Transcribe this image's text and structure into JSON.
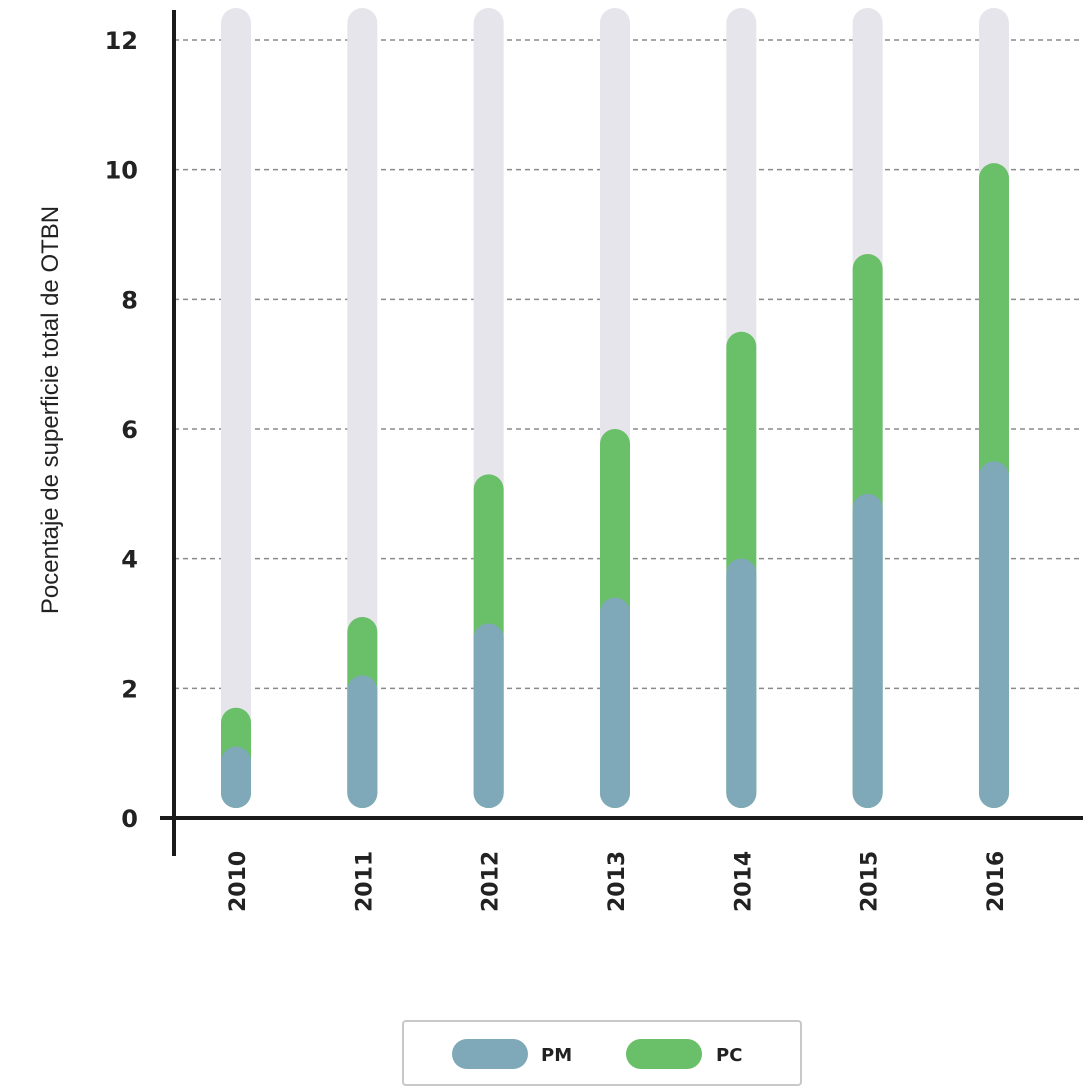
{
  "chart_data": {
    "type": "bar",
    "stacked": true,
    "categories": [
      "2010",
      "2011",
      "2012",
      "2013",
      "2014",
      "2015",
      "2016"
    ],
    "series": [
      {
        "name": "PM",
        "values": [
          1.1,
          2.2,
          3.0,
          3.4,
          4.0,
          5.0,
          5.5
        ]
      },
      {
        "name": "PC",
        "values": [
          0.6,
          0.9,
          2.3,
          2.6,
          3.5,
          3.7,
          4.6
        ]
      }
    ],
    "ylabel": "Pocentaje de superficie total de OTBN",
    "xlabel": "",
    "ylim": [
      0,
      12
    ],
    "yticks": [
      0,
      2,
      4,
      6,
      8,
      10,
      12
    ],
    "grid": true,
    "legend_position": "bottom-center",
    "colors": {
      "PM": "#7fa9b8",
      "PC": "#6abf69",
      "track": "#e6e5ec",
      "axis": "#1a1a1a",
      "grid": "#8a8a8a"
    }
  }
}
